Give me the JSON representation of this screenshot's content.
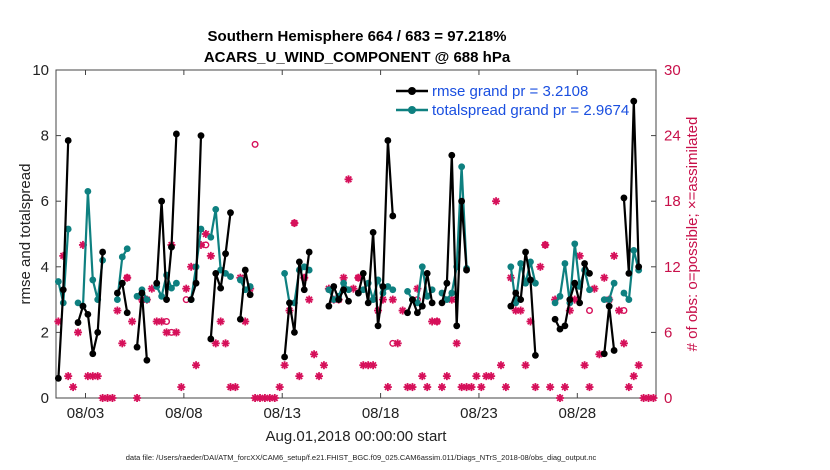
{
  "chart_data": {
    "type": "line",
    "title_line1": "Southern Hemisphere 664 / 683 = 97.218%",
    "title_line2": "ACARS_U_WIND_COMPONENT @ 688 hPa",
    "xlabel": "Aug.01,2018 00:00:00 start",
    "ylabel": "rmse and totalspread",
    "y2label": "# of obs: o=possible; ×=assimilated",
    "footer": "data file: /Users/raeder/DAI/ATM_forcXX/CAM6_setup/f.e21.FHIST_BGC.f09_025.CAM6assim.011/Diags_NTrS_2018-08/obs_diag_output.nc",
    "xlim": [
      1.5,
      32.0
    ],
    "ylim": [
      0,
      10
    ],
    "y2lim": [
      0,
      30
    ],
    "xticks": [
      3,
      8,
      13,
      18,
      23,
      28
    ],
    "xtick_labels": [
      "08/03",
      "08/08",
      "08/13",
      "08/18",
      "08/23",
      "08/28"
    ],
    "yticks": [
      0,
      2,
      4,
      6,
      8,
      10
    ],
    "ytick_labels": [
      "0",
      "2",
      "4",
      "6",
      "8",
      "10"
    ],
    "y2ticks": [
      0,
      6,
      12,
      18,
      24,
      30
    ],
    "y2tick_labels": [
      "0",
      "6",
      "12",
      "18",
      "24",
      "30"
    ],
    "legend": {
      "location": "top-right",
      "entries": [
        "rmse grand pr = 3.2108",
        "totalspread grand pr = 2.9674"
      ]
    },
    "colors": {
      "rmse": "#000000",
      "spread": "#0e8080",
      "obs": "#d6105a"
    },
    "series": [
      {
        "name": "rmse",
        "segments": [
          [
            [
              1.62,
              0.6
            ],
            [
              1.87,
              3.3
            ],
            [
              2.12,
              7.85
            ]
          ],
          [
            [
              2.62,
              2.3
            ],
            [
              2.87,
              2.8
            ],
            [
              3.12,
              2.55
            ],
            [
              3.37,
              1.35
            ],
            [
              3.62,
              2.0
            ],
            [
              3.87,
              4.45
            ]
          ],
          [
            [
              4.62,
              3.2
            ],
            [
              4.87,
              3.5
            ],
            [
              5.12,
              2.6
            ]
          ],
          [
            [
              5.62,
              1.55
            ],
            [
              5.87,
              3.2
            ],
            [
              6.12,
              1.15
            ]
          ],
          [
            [
              6.62,
              3.5
            ],
            [
              6.87,
              6.0
            ],
            [
              7.12,
              3.0
            ],
            [
              7.37,
              4.6
            ],
            [
              7.62,
              8.05
            ]
          ],
          [
            [
              8.37,
              3.0
            ],
            [
              8.62,
              3.5
            ],
            [
              8.87,
              8.0
            ]
          ],
          [
            [
              9.37,
              1.8
            ],
            [
              9.62,
              3.8
            ],
            [
              9.87,
              3.35
            ],
            [
              10.12,
              4.4
            ],
            [
              10.37,
              5.65
            ]
          ],
          [
            [
              10.87,
              2.4
            ],
            [
              11.12,
              3.9
            ],
            [
              11.37,
              3.15
            ]
          ],
          [
            [
              13.12,
              1.25
            ],
            [
              13.37,
              2.9
            ],
            [
              13.62,
              2.0
            ],
            [
              13.87,
              4.15
            ],
            [
              14.12,
              3.3
            ],
            [
              14.37,
              4.45
            ]
          ],
          [
            [
              15.37,
              2.8
            ],
            [
              15.62,
              3.4
            ],
            [
              15.87,
              3.0
            ],
            [
              16.12,
              3.3
            ],
            [
              16.37,
              2.95
            ]
          ],
          [
            [
              16.87,
              3.2
            ],
            [
              17.12,
              3.8
            ],
            [
              17.37,
              2.9
            ],
            [
              17.62,
              5.05
            ],
            [
              17.87,
              2.2
            ],
            [
              18.12,
              3.4
            ],
            [
              18.37,
              7.85
            ],
            [
              18.62,
              5.55
            ]
          ],
          [
            [
              19.37,
              2.6
            ],
            [
              19.62,
              3.0
            ],
            [
              19.87,
              2.6
            ],
            [
              20.12,
              2.8
            ],
            [
              20.37,
              3.8
            ],
            [
              20.62,
              2.9
            ]
          ],
          [
            [
              21.12,
              2.9
            ],
            [
              21.37,
              3.5
            ],
            [
              21.62,
              7.4
            ],
            [
              21.87,
              2.2
            ],
            [
              22.12,
              6.0
            ],
            [
              22.37,
              3.9
            ]
          ],
          [
            [
              24.62,
              2.8
            ],
            [
              24.87,
              3.2
            ],
            [
              25.12,
              3.0
            ],
            [
              25.37,
              4.45
            ],
            [
              25.62,
              3.6
            ],
            [
              25.87,
              1.3
            ]
          ],
          [
            [
              26.87,
              2.4
            ],
            [
              27.12,
              2.1
            ],
            [
              27.37,
              2.2
            ],
            [
              27.62,
              3.0
            ],
            [
              27.87,
              3.5
            ],
            [
              28.12,
              2.9
            ],
            [
              28.37,
              4.1
            ],
            [
              28.62,
              3.8
            ]
          ],
          [
            [
              29.37,
              1.35
            ],
            [
              29.62,
              2.8
            ],
            [
              29.87,
              1.45
            ]
          ],
          [
            [
              30.37,
              6.1
            ],
            [
              30.62,
              3.8
            ],
            [
              30.87,
              9.05
            ],
            [
              31.12,
              4.0
            ]
          ]
        ]
      },
      {
        "name": "totalspread",
        "segments": [
          [
            [
              1.62,
              3.55
            ],
            [
              1.87,
              2.9
            ],
            [
              2.12,
              5.15
            ]
          ],
          [
            [
              2.62,
              2.9
            ],
            [
              2.87,
              2.8
            ],
            [
              3.12,
              6.3
            ],
            [
              3.37,
              3.6
            ],
            [
              3.62,
              3.0
            ],
            [
              3.87,
              4.2
            ]
          ],
          [
            [
              4.62,
              3.0
            ],
            [
              4.87,
              4.3
            ],
            [
              5.12,
              4.55
            ]
          ],
          [
            [
              5.62,
              3.1
            ],
            [
              5.87,
              3.3
            ],
            [
              6.12,
              3.0
            ]
          ],
          [
            [
              6.62,
              3.4
            ],
            [
              6.87,
              3.1
            ],
            [
              7.12,
              3.75
            ],
            [
              7.37,
              3.35
            ],
            [
              7.62,
              3.5
            ]
          ],
          [
            [
              8.37,
              3.0
            ],
            [
              8.62,
              4.0
            ],
            [
              8.87,
              5.15
            ]
          ],
          [
            [
              9.37,
              4.9
            ],
            [
              9.62,
              5.75
            ],
            [
              9.87,
              3.9
            ],
            [
              10.12,
              3.8
            ],
            [
              10.37,
              3.7
            ]
          ],
          [
            [
              10.87,
              3.6
            ],
            [
              11.12,
              3.3
            ],
            [
              11.37,
              3.4
            ]
          ],
          [
            [
              13.12,
              3.8
            ],
            [
              13.37,
              2.9
            ],
            [
              13.62,
              2.9
            ],
            [
              13.87,
              3.9
            ],
            [
              14.12,
              4.0
            ],
            [
              14.37,
              3.9
            ]
          ],
          [
            [
              15.37,
              3.3
            ],
            [
              15.62,
              3.0
            ],
            [
              15.87,
              3.1
            ],
            [
              16.12,
              3.5
            ],
            [
              16.37,
              3.3
            ]
          ],
          [
            [
              16.87,
              3.2
            ],
            [
              17.12,
              3.3
            ],
            [
              17.37,
              3.5
            ],
            [
              17.62,
              3.0
            ],
            [
              17.87,
              3.6
            ],
            [
              18.12,
              3.2
            ],
            [
              18.37,
              3.4
            ],
            [
              18.62,
              3.3
            ]
          ],
          [
            [
              19.37,
              3.25
            ],
            [
              19.62,
              3.0
            ],
            [
              19.87,
              2.9
            ],
            [
              20.12,
              4.0
            ],
            [
              20.37,
              3.1
            ],
            [
              20.62,
              3.3
            ]
          ],
          [
            [
              21.12,
              3.2
            ],
            [
              21.37,
              3.0
            ],
            [
              21.62,
              3.2
            ],
            [
              21.87,
              4.0
            ],
            [
              22.12,
              7.05
            ],
            [
              22.37,
              3.95
            ]
          ],
          [
            [
              24.62,
              4.0
            ],
            [
              24.87,
              2.9
            ],
            [
              25.12,
              4.1
            ],
            [
              25.37,
              3.5
            ],
            [
              25.62,
              4.15
            ],
            [
              25.87,
              3.5
            ]
          ],
          [
            [
              26.87,
              2.9
            ],
            [
              27.12,
              3.1
            ],
            [
              27.37,
              4.1
            ],
            [
              27.62,
              2.9
            ],
            [
              27.87,
              4.7
            ],
            [
              28.12,
              3.4
            ],
            [
              28.37,
              3.9
            ],
            [
              28.62,
              3.3
            ]
          ],
          [
            [
              29.37,
              3.0
            ],
            [
              29.62,
              3.0
            ],
            [
              29.87,
              3.5
            ]
          ],
          [
            [
              30.37,
              3.2
            ],
            [
              30.62,
              3.0
            ],
            [
              30.87,
              4.5
            ],
            [
              31.12,
              3.9
            ]
          ]
        ]
      }
    ],
    "obs_possible": [
      [
        1.62,
        7
      ],
      [
        1.87,
        13
      ],
      [
        2.12,
        2
      ],
      [
        2.37,
        1
      ],
      [
        2.62,
        6
      ],
      [
        2.87,
        14
      ],
      [
        3.12,
        2
      ],
      [
        3.37,
        2
      ],
      [
        3.62,
        2
      ],
      [
        3.87,
        0
      ],
      [
        4.12,
        0
      ],
      [
        4.37,
        0
      ],
      [
        4.62,
        8
      ],
      [
        4.87,
        5
      ],
      [
        5.12,
        11
      ],
      [
        5.37,
        7
      ],
      [
        5.62,
        0
      ],
      [
        5.87,
        9
      ],
      [
        6.12,
        9
      ],
      [
        6.37,
        10
      ],
      [
        6.62,
        7
      ],
      [
        6.87,
        7
      ],
      [
        7.12,
        6
      ],
      [
        7.37,
        14
      ],
      [
        7.62,
        6
      ],
      [
        7.87,
        1
      ],
      [
        8.12,
        10
      ],
      [
        8.37,
        12
      ],
      [
        8.62,
        3
      ],
      [
        8.87,
        14
      ],
      [
        9.12,
        15
      ],
      [
        9.37,
        13
      ],
      [
        9.62,
        5
      ],
      [
        9.87,
        7
      ],
      [
        10.12,
        5
      ],
      [
        10.37,
        1
      ],
      [
        10.62,
        1
      ],
      [
        10.87,
        11
      ],
      [
        11.12,
        7
      ],
      [
        11.37,
        10
      ],
      [
        11.62,
        0
      ],
      [
        11.87,
        0
      ],
      [
        12.12,
        0
      ],
      [
        12.37,
        0
      ],
      [
        12.62,
        0
      ],
      [
        12.87,
        1
      ],
      [
        13.12,
        3
      ],
      [
        13.37,
        8
      ],
      [
        13.62,
        16
      ],
      [
        13.87,
        2
      ],
      [
        14.12,
        11
      ],
      [
        14.37,
        9
      ],
      [
        14.62,
        4
      ],
      [
        14.87,
        2
      ],
      [
        15.12,
        3
      ],
      [
        15.37,
        10
      ],
      [
        15.62,
        9
      ],
      [
        15.87,
        9
      ],
      [
        16.12,
        11
      ],
      [
        16.37,
        20
      ],
      [
        16.62,
        10
      ],
      [
        16.87,
        11
      ],
      [
        17.12,
        3
      ],
      [
        17.37,
        3
      ],
      [
        17.62,
        3
      ],
      [
        17.87,
        8
      ],
      [
        18.12,
        9
      ],
      [
        18.37,
        1
      ],
      [
        18.62,
        9
      ],
      [
        18.87,
        5
      ],
      [
        19.12,
        8
      ],
      [
        19.37,
        1
      ],
      [
        19.62,
        1
      ],
      [
        19.87,
        10
      ],
      [
        20.12,
        2
      ],
      [
        20.37,
        1
      ],
      [
        20.62,
        7
      ],
      [
        20.87,
        7
      ],
      [
        21.12,
        1
      ],
      [
        21.37,
        2
      ],
      [
        21.62,
        9
      ],
      [
        21.87,
        5
      ],
      [
        22.12,
        1
      ],
      [
        22.37,
        1
      ],
      [
        22.62,
        1
      ],
      [
        22.87,
        2
      ],
      [
        23.12,
        1
      ],
      [
        23.37,
        2
      ],
      [
        23.62,
        2
      ],
      [
        23.87,
        18
      ],
      [
        24.12,
        3
      ],
      [
        24.37,
        1
      ],
      [
        24.62,
        11
      ],
      [
        24.87,
        8
      ],
      [
        25.12,
        8
      ],
      [
        25.37,
        3
      ],
      [
        25.62,
        7
      ],
      [
        25.87,
        1
      ],
      [
        26.12,
        12
      ],
      [
        26.37,
        14
      ],
      [
        26.62,
        1
      ],
      [
        26.87,
        9
      ],
      [
        27.12,
        0
      ],
      [
        27.37,
        1
      ],
      [
        27.62,
        8
      ],
      [
        27.87,
        9
      ],
      [
        28.12,
        13
      ],
      [
        28.37,
        3
      ],
      [
        28.62,
        1
      ],
      [
        28.87,
        10
      ],
      [
        29.12,
        4
      ],
      [
        29.37,
        11
      ],
      [
        29.62,
        9
      ],
      [
        29.87,
        13
      ],
      [
        30.12,
        8
      ],
      [
        30.37,
        5
      ],
      [
        30.62,
        1
      ],
      [
        30.87,
        2
      ],
      [
        31.12,
        3
      ],
      [
        31.37,
        0
      ],
      [
        31.62,
        0
      ],
      [
        31.87,
        0
      ]
    ],
    "obs_possible_open": [
      [
        5.12,
        11
      ],
      [
        7.12,
        7
      ],
      [
        7.37,
        6
      ],
      [
        8.12,
        9
      ],
      [
        9.12,
        14
      ],
      [
        11.62,
        23.2
      ],
      [
        13.62,
        16
      ],
      [
        14.12,
        11
      ],
      [
        16.87,
        11
      ],
      [
        18.62,
        5
      ],
      [
        19.87,
        9
      ],
      [
        20.87,
        7
      ],
      [
        26.37,
        14
      ],
      [
        28.62,
        8
      ],
      [
        30.37,
        8
      ]
    ]
  }
}
